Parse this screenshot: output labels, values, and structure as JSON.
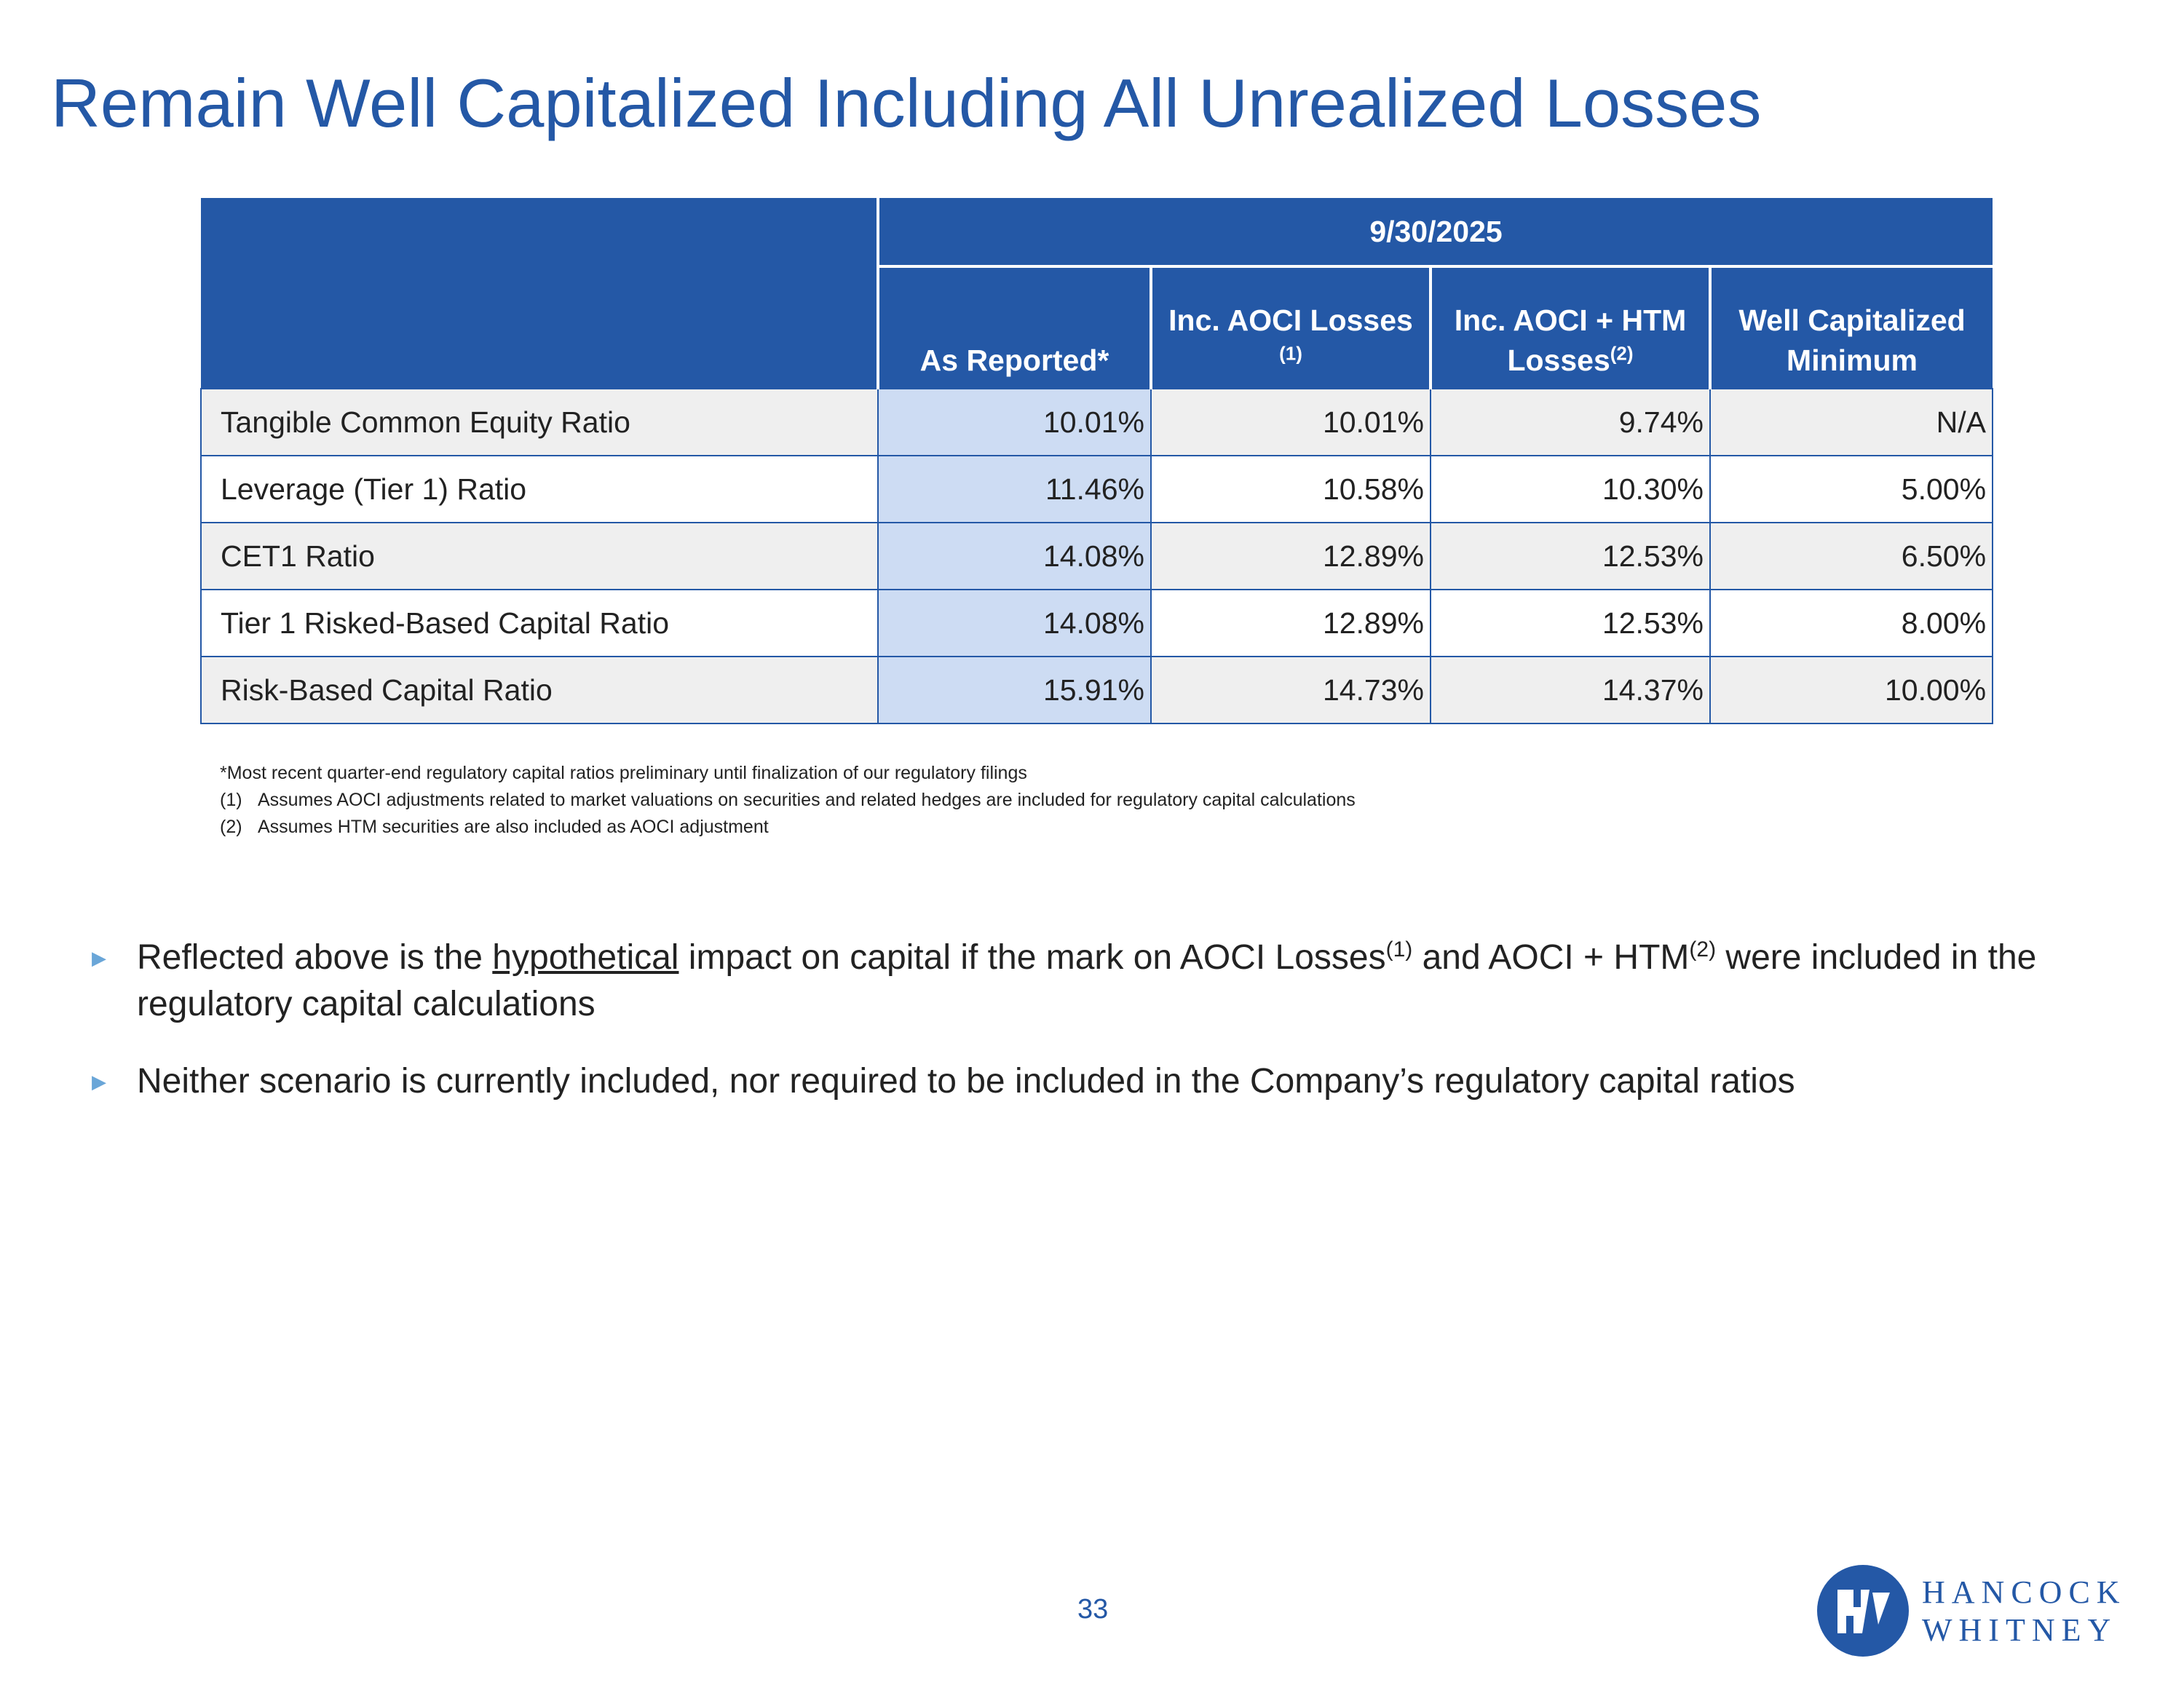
{
  "title": "Remain Well Capitalized Including All Unrealized Losses",
  "table": {
    "date": "9/30/2025",
    "headers": [
      {
        "main": "As Reported*",
        "sup": ""
      },
      {
        "main": "Inc. AOCI Losses",
        "sup": "(1)"
      },
      {
        "main": "Inc. AOCI + HTM Losses",
        "sup": "(2)"
      },
      {
        "main": "Well Capitalized Minimum",
        "sup": ""
      }
    ],
    "rows": [
      {
        "label": "Tangible Common Equity Ratio",
        "values": [
          "10.01%",
          "10.01%",
          "9.74%",
          "N/A"
        ]
      },
      {
        "label": "Leverage (Tier 1) Ratio",
        "values": [
          "11.46%",
          "10.58%",
          "10.30%",
          "5.00%"
        ]
      },
      {
        "label": "CET1 Ratio",
        "values": [
          "14.08%",
          "12.89%",
          "12.53%",
          "6.50%"
        ]
      },
      {
        "label": "Tier 1 Risked-Based Capital Ratio",
        "values": [
          "14.08%",
          "12.89%",
          "12.53%",
          "8.00%"
        ]
      },
      {
        "label": "Risk-Based Capital Ratio",
        "values": [
          "15.91%",
          "14.73%",
          "14.37%",
          "10.00%"
        ]
      }
    ]
  },
  "footnotes": {
    "star": "*Most recent quarter-end regulatory capital ratios preliminary until finalization of our regulatory filings",
    "items": [
      {
        "num": "(1)",
        "text": "Assumes AOCI adjustments related to market valuations on securities and related hedges are included for regulatory capital calculations"
      },
      {
        "num": "(2)",
        "text": "Assumes HTM securities are also included as AOCI adjustment"
      }
    ]
  },
  "bullets": {
    "b1": {
      "part1": "Reflected above is the ",
      "underlined": "hypothetical",
      "part2": " impact on capital if the mark on AOCI Losses",
      "sup1": "(1)",
      "part3": " and AOCI + HTM",
      "sup2": "(2)",
      "part4": " were included in the regulatory capital calculations"
    },
    "b2": "Neither scenario is currently included, nor required to be included in the Company’s regulatory capital ratios"
  },
  "page_number": "33",
  "logo": {
    "line1": "HANCOCK",
    "line2": "WHITNEY"
  },
  "colors": {
    "brand_blue": "#2458a6",
    "header_bg": "#2458a6",
    "reported_col": "#cddcf3",
    "row_shade": "#efefef",
    "bullet_marker": "#6aa6d8"
  }
}
